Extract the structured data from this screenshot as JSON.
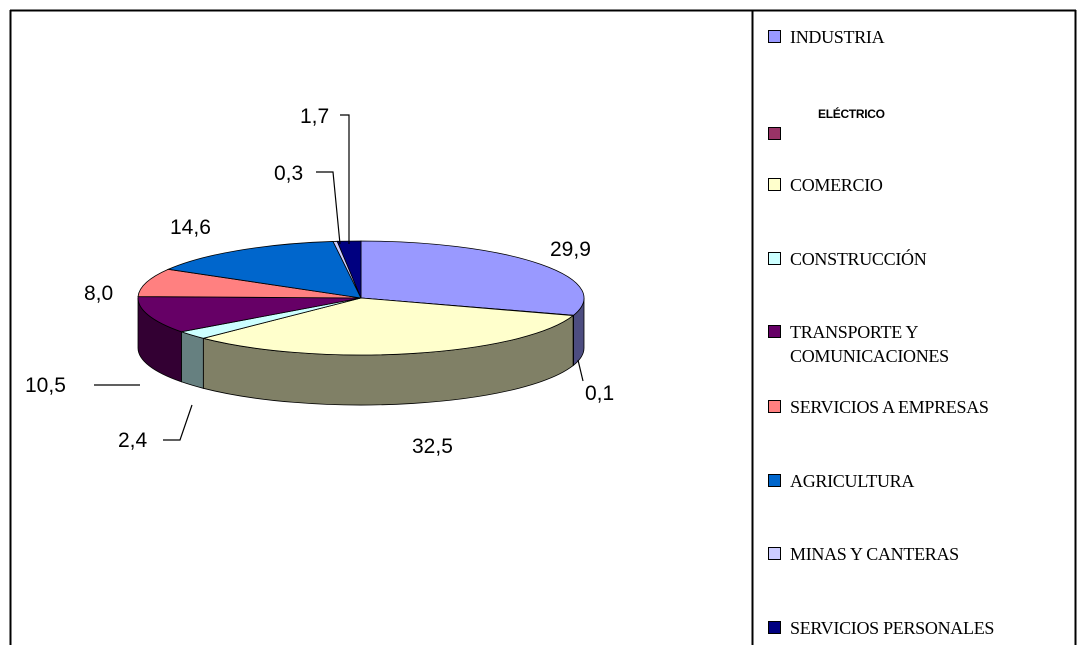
{
  "chart_data": {
    "type": "pie3d",
    "categories": [
      "INDUSTRIA",
      "ELÉCTRICO",
      "COMERCIO",
      "CONSTRUCCIÓN",
      "TRANSPORTE Y COMUNICACIONES",
      "SERVICIOS A EMPRESAS",
      "AGRICULTURA",
      "MINAS Y CANTERAS",
      "SERVICIOS PERSONALES"
    ],
    "values": [
      29.9,
      0.1,
      32.5,
      2.4,
      10.5,
      8.0,
      14.6,
      0.3,
      1.7
    ],
    "value_labels": [
      "29,9",
      "0,1",
      "32,5",
      "2,4",
      "10,5",
      "8,0",
      "14,6",
      "0,3",
      "1,7"
    ],
    "colors": [
      "#9999ff",
      "#993366",
      "#ffffcc",
      "#ccffff",
      "#660066",
      "#ff8080",
      "#0066cc",
      "#ccccff",
      "#000080"
    ],
    "legend": "right"
  }
}
